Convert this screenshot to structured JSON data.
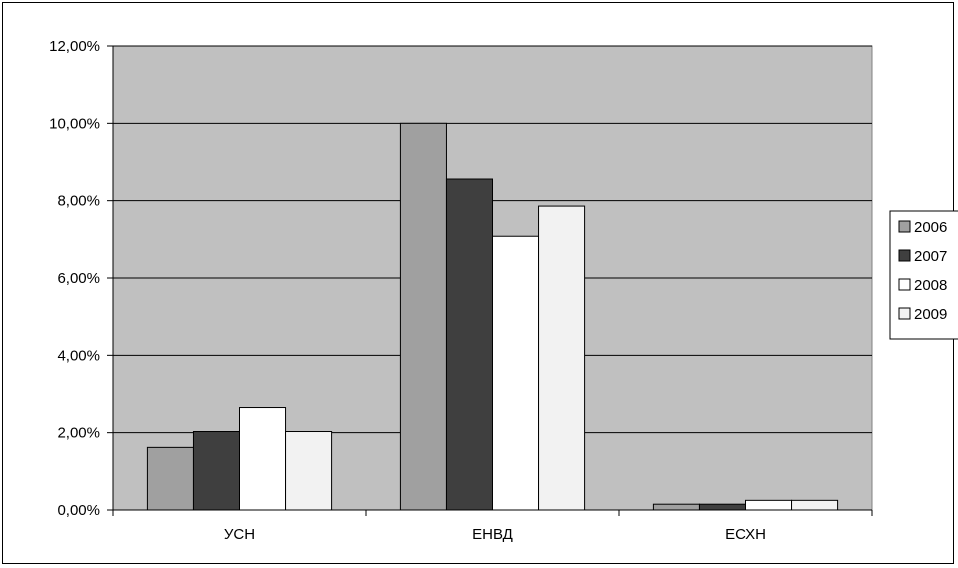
{
  "chart_data": {
    "type": "bar",
    "categories": [
      "УСН",
      "ЕНВД",
      "ЕСХН"
    ],
    "series": [
      {
        "name": "2006",
        "values": [
          1.62,
          10.0,
          0.15
        ]
      },
      {
        "name": "2007",
        "values": [
          2.03,
          8.56,
          0.15
        ]
      },
      {
        "name": "2008",
        "values": [
          2.65,
          7.08,
          0.25
        ]
      },
      {
        "name": "2009",
        "values": [
          2.03,
          7.86,
          0.25
        ]
      }
    ],
    "colors": [
      "#a0a0a0",
      "#3f3f3f",
      "#ffffff",
      "#f2f2f2"
    ],
    "plot_background": "#c0c0c0",
    "ylim": [
      0,
      12
    ],
    "yticks": [
      0,
      2,
      4,
      6,
      8,
      10,
      12
    ],
    "ytick_labels": [
      "0,00%",
      "2,00%",
      "4,00%",
      "6,00%",
      "8,00%",
      "10,00%",
      "12,00%"
    ],
    "grid": true,
    "legend_position": "right",
    "title": "",
    "xlabel": "",
    "ylabel": ""
  }
}
